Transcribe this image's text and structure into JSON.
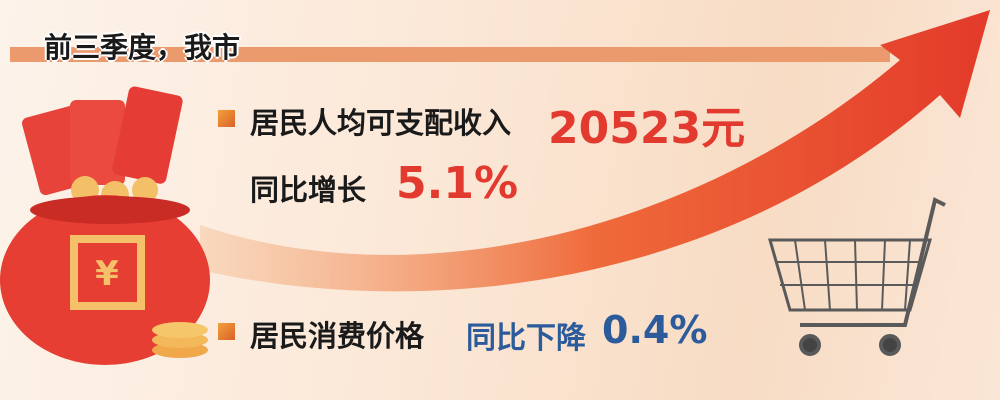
{
  "header": {
    "title": "前三季度，我市"
  },
  "income": {
    "label": "居民人均可支配收入",
    "value": "20523元",
    "growth_label": "同比增长",
    "growth_value": "5.1%"
  },
  "prices": {
    "label": "居民消费价格",
    "change_label": "同比下降",
    "change_value": "0.4%"
  },
  "colors": {
    "accent_red": "#e23a2e",
    "accent_blue": "#2c5b9c",
    "band": "#eb9a6e"
  },
  "icons": [
    "money-bag-icon",
    "red-envelope-icon",
    "coin-stack-icon",
    "shopping-cart-icon",
    "rising-arrow-icon"
  ]
}
